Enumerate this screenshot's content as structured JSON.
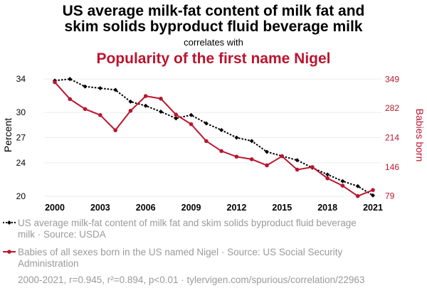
{
  "chart_data": {
    "type": "line",
    "title": "US average milk-fat content of milk fat and skim solids byproduct fluid beverage milk",
    "title_lines": [
      "US average milk-fat content of milk fat and",
      "skim solids byproduct fluid beverage milk"
    ],
    "correlates_text": "correlates with",
    "title2": "Popularity of the first name Nigel",
    "x": [
      2000,
      2001,
      2002,
      2003,
      2004,
      2005,
      2006,
      2007,
      2008,
      2009,
      2010,
      2011,
      2012,
      2013,
      2014,
      2015,
      2016,
      2017,
      2018,
      2019,
      2020,
      2021
    ],
    "x_ticks": [
      "2000",
      "2003",
      "2006",
      "2009",
      "2012",
      "2015",
      "2018",
      "2021"
    ],
    "xlim": [
      2000,
      2021
    ],
    "left_axis": {
      "label": "Percent",
      "ticks": [
        "20",
        "24",
        "27",
        "30",
        "34"
      ],
      "ylim": [
        19.4,
        34.6
      ],
      "color": "#000000"
    },
    "right_axis": {
      "label": "Babies born",
      "ticks": [
        "79",
        "146",
        "214",
        "282",
        "349"
      ],
      "ylim": [
        67,
        361
      ],
      "color": "#b9162f"
    },
    "series": [
      {
        "name": "US average milk-fat content of milk fat and skim solids byproduct fluid beverage milk",
        "legend_lines": [
          "US average milk-fat content of milk fat and skim solids byproduct fluid beverage",
          "milk · Source: USDA"
        ],
        "axis": "left",
        "color": "#000000",
        "style": "dotted-diamond",
        "values": [
          33.8,
          34.0,
          33.1,
          32.9,
          32.7,
          31.3,
          30.8,
          30.1,
          29.3,
          29.7,
          28.7,
          27.9,
          27.0,
          26.6,
          25.3,
          24.8,
          24.3,
          23.4,
          22.6,
          21.8,
          21.2,
          20.1
        ]
      },
      {
        "name": "Babies of all sexes born in the US named Nigel · Source: US Social Security Administration",
        "legend_lines": [
          "Babies of all sexes born in the US named Nigel · Source: US Social Security",
          "Administration"
        ],
        "axis": "right",
        "color": "#b9162f",
        "style": "solid-dot",
        "values": [
          342,
          303,
          280,
          266,
          231,
          276,
          310,
          304,
          267,
          245,
          206,
          183,
          170,
          164,
          150,
          171,
          140,
          146,
          120,
          103,
          79,
          93
        ]
      }
    ],
    "footer": "2000-2021, r=0.945, r²=0.894, p<0.01 · tylervigen.com/spurious/correlation/22963",
    "grid": true,
    "legend_placement": "bottom-left"
  }
}
